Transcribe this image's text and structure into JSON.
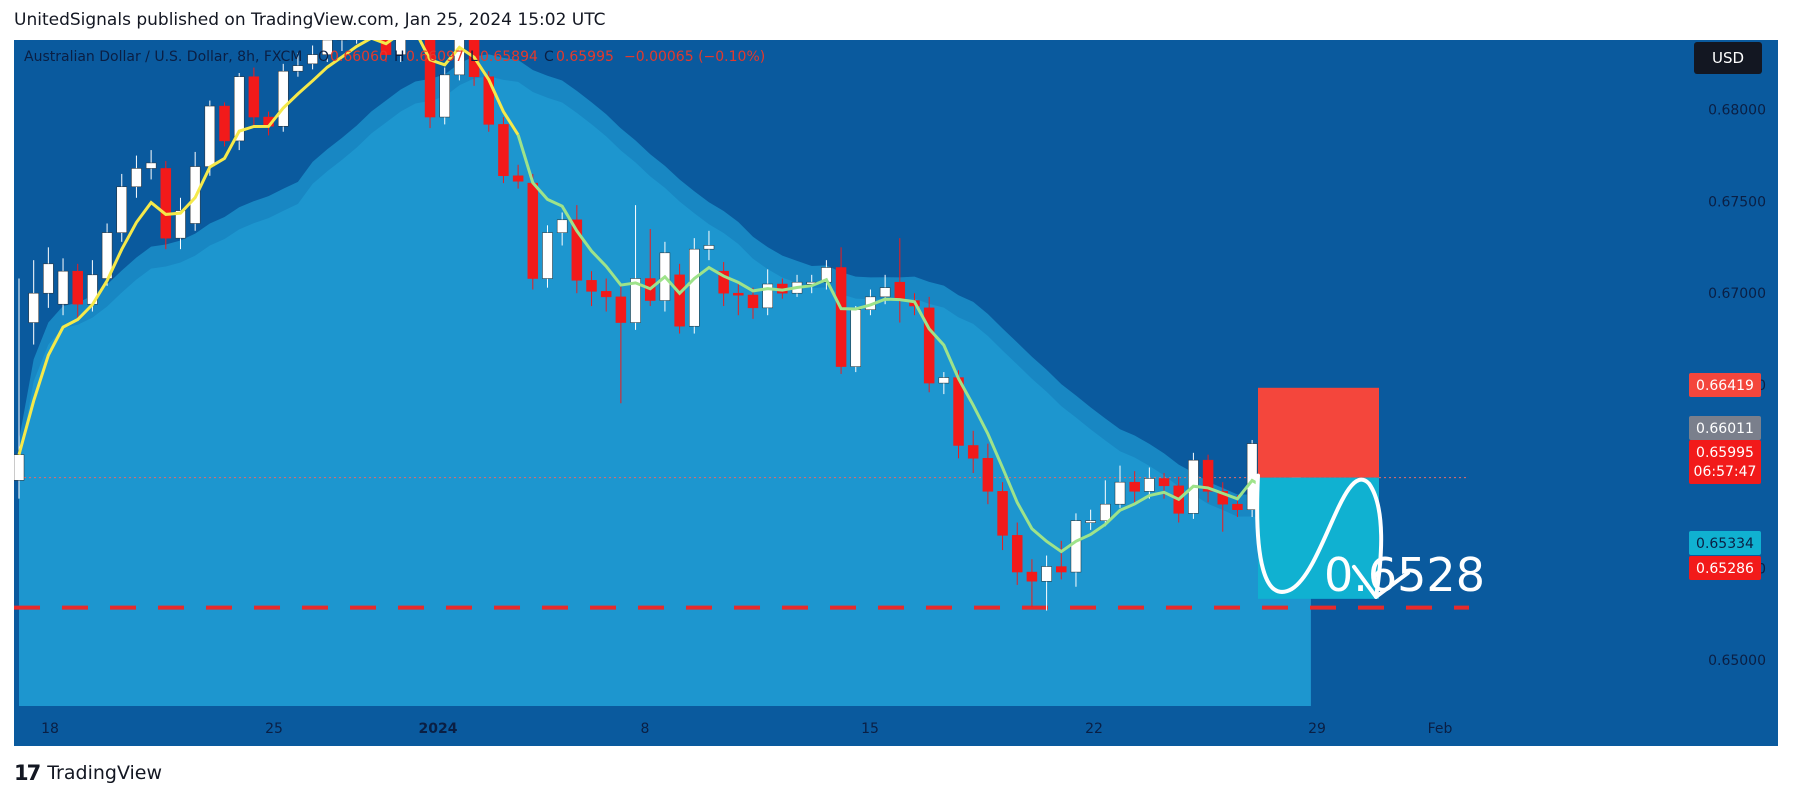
{
  "header": {
    "text": "UnitedSignals published on TradingView.com, Jan 25, 2024 15:02 UTC"
  },
  "legend": {
    "symbol": "Australian Dollar / U.S. Dollar, 8h, FXCM",
    "o_label": "O",
    "o_value": "0.66060",
    "h_label": "H",
    "h_value": "0.66097",
    "l_label": "L",
    "l_value": "0.65894",
    "c_label": "C",
    "c_value": "0.65995",
    "change": "−0.00065 (−0.10%)"
  },
  "currency_button": "USD",
  "price_labels": {
    "stop": "0.66419",
    "ask": "0.66011",
    "last": "0.65995",
    "countdown": "06:57:47",
    "target_line": "0.65334",
    "support": "0.65286"
  },
  "annotation_text": "0.6528",
  "footer": {
    "brand": "TradingView",
    "logo_text": "17"
  },
  "colors": {
    "background": "#0a5a9e",
    "up_candle": "#ffffff",
    "down_candle": "#f21a1a",
    "fast_ma": "#f5e94a",
    "slow_ma": "#9ee38a",
    "band_fill": "#1b8fc9",
    "stop_box": "#f4463c",
    "target_box": "#10b1d1",
    "support_line": "#e82a2a"
  },
  "chart_data": {
    "type": "candlestick",
    "timeframe": "8h",
    "y_axis": {
      "ticks": [
        "0.68000",
        "0.67500",
        "0.67000",
        "0.66500",
        "0.65500",
        "0.65000"
      ],
      "range": [
        0.6475,
        0.6838
      ]
    },
    "x_axis": {
      "ticks": [
        "18",
        "25",
        "2024",
        "8",
        "15",
        "22",
        "29",
        "Feb"
      ]
    },
    "candles": [
      {
        "o": 0.6598,
        "h": 0.6708,
        "l": 0.6588,
        "c": 0.6612
      },
      {
        "o": 0.6684,
        "h": 0.6718,
        "l": 0.6672,
        "c": 0.67
      },
      {
        "o": 0.67,
        "h": 0.6725,
        "l": 0.6692,
        "c": 0.6716
      },
      {
        "o": 0.6694,
        "h": 0.6719,
        "l": 0.6688,
        "c": 0.6712
      },
      {
        "o": 0.6712,
        "h": 0.6716,
        "l": 0.6685,
        "c": 0.6694
      },
      {
        "o": 0.6694,
        "h": 0.6718,
        "l": 0.669,
        "c": 0.671
      },
      {
        "o": 0.6708,
        "h": 0.6738,
        "l": 0.6704,
        "c": 0.6733
      },
      {
        "o": 0.6733,
        "h": 0.6765,
        "l": 0.6728,
        "c": 0.6758
      },
      {
        "o": 0.6758,
        "h": 0.6775,
        "l": 0.6752,
        "c": 0.6768
      },
      {
        "o": 0.6768,
        "h": 0.6778,
        "l": 0.6762,
        "c": 0.6771
      },
      {
        "o": 0.6768,
        "h": 0.6772,
        "l": 0.6724,
        "c": 0.673
      },
      {
        "o": 0.673,
        "h": 0.6752,
        "l": 0.6724,
        "c": 0.6745
      },
      {
        "o": 0.6738,
        "h": 0.6777,
        "l": 0.6734,
        "c": 0.6769
      },
      {
        "o": 0.6769,
        "h": 0.6805,
        "l": 0.6764,
        "c": 0.6802
      },
      {
        "o": 0.6802,
        "h": 0.6804,
        "l": 0.678,
        "c": 0.6783
      },
      {
        "o": 0.6783,
        "h": 0.682,
        "l": 0.6778,
        "c": 0.6818
      },
      {
        "o": 0.6818,
        "h": 0.6823,
        "l": 0.6791,
        "c": 0.6796
      },
      {
        "o": 0.6796,
        "h": 0.6799,
        "l": 0.6786,
        "c": 0.6791
      },
      {
        "o": 0.6791,
        "h": 0.6825,
        "l": 0.6788,
        "c": 0.6821
      },
      {
        "o": 0.6821,
        "h": 0.6831,
        "l": 0.6818,
        "c": 0.6824
      },
      {
        "o": 0.6825,
        "h": 0.6835,
        "l": 0.6822,
        "c": 0.683
      },
      {
        "o": 0.683,
        "h": 0.6842,
        "l": 0.6826,
        "c": 0.6838
      },
      {
        "o": 0.6838,
        "h": 0.6846,
        "l": 0.6832,
        "c": 0.684
      },
      {
        "o": 0.684,
        "h": 0.685,
        "l": 0.6836,
        "c": 0.6846
      },
      {
        "o": 0.6846,
        "h": 0.6853,
        "l": 0.6842,
        "c": 0.6848
      },
      {
        "o": 0.6848,
        "h": 0.6852,
        "l": 0.6826,
        "c": 0.683
      },
      {
        "o": 0.683,
        "h": 0.6856,
        "l": 0.6826,
        "c": 0.6853
      },
      {
        "o": 0.6853,
        "h": 0.6858,
        "l": 0.6842,
        "c": 0.6845
      },
      {
        "o": 0.685,
        "h": 0.6855,
        "l": 0.679,
        "c": 0.6796
      },
      {
        "o": 0.6796,
        "h": 0.6823,
        "l": 0.6792,
        "c": 0.6819
      },
      {
        "o": 0.6819,
        "h": 0.6858,
        "l": 0.6816,
        "c": 0.6853
      },
      {
        "o": 0.6853,
        "h": 0.6858,
        "l": 0.6813,
        "c": 0.6818
      },
      {
        "o": 0.6818,
        "h": 0.6821,
        "l": 0.6788,
        "c": 0.6792
      },
      {
        "o": 0.6792,
        "h": 0.6796,
        "l": 0.676,
        "c": 0.6764
      },
      {
        "o": 0.6764,
        "h": 0.677,
        "l": 0.6757,
        "c": 0.6761
      },
      {
        "o": 0.676,
        "h": 0.6765,
        "l": 0.6702,
        "c": 0.6708
      },
      {
        "o": 0.6708,
        "h": 0.6737,
        "l": 0.6703,
        "c": 0.6733
      },
      {
        "o": 0.6733,
        "h": 0.6744,
        "l": 0.6726,
        "c": 0.674
      },
      {
        "o": 0.674,
        "h": 0.6748,
        "l": 0.67,
        "c": 0.6707
      },
      {
        "o": 0.6707,
        "h": 0.6712,
        "l": 0.6693,
        "c": 0.6701
      },
      {
        "o": 0.6701,
        "h": 0.6708,
        "l": 0.669,
        "c": 0.6698
      },
      {
        "o": 0.6698,
        "h": 0.6704,
        "l": 0.664,
        "c": 0.6684
      },
      {
        "o": 0.6684,
        "h": 0.6748,
        "l": 0.668,
        "c": 0.6708
      },
      {
        "o": 0.6708,
        "h": 0.6735,
        "l": 0.6693,
        "c": 0.6696
      },
      {
        "o": 0.6696,
        "h": 0.6728,
        "l": 0.669,
        "c": 0.6722
      },
      {
        "o": 0.671,
        "h": 0.6716,
        "l": 0.6678,
        "c": 0.6682
      },
      {
        "o": 0.6682,
        "h": 0.673,
        "l": 0.6678,
        "c": 0.6724
      },
      {
        "o": 0.6724,
        "h": 0.6734,
        "l": 0.6718,
        "c": 0.6726
      },
      {
        "o": 0.6712,
        "h": 0.6717,
        "l": 0.6693,
        "c": 0.67
      },
      {
        "o": 0.67,
        "h": 0.6705,
        "l": 0.6688,
        "c": 0.6699
      },
      {
        "o": 0.6699,
        "h": 0.6703,
        "l": 0.6686,
        "c": 0.6692
      },
      {
        "o": 0.6692,
        "h": 0.6713,
        "l": 0.6688,
        "c": 0.6705
      },
      {
        "o": 0.6705,
        "h": 0.6708,
        "l": 0.6697,
        "c": 0.67
      },
      {
        "o": 0.67,
        "h": 0.671,
        "l": 0.6698,
        "c": 0.6706
      },
      {
        "o": 0.6706,
        "h": 0.671,
        "l": 0.67,
        "c": 0.6706
      },
      {
        "o": 0.6706,
        "h": 0.6718,
        "l": 0.6702,
        "c": 0.6714
      },
      {
        "o": 0.6714,
        "h": 0.6725,
        "l": 0.6656,
        "c": 0.666
      },
      {
        "o": 0.666,
        "h": 0.6693,
        "l": 0.6657,
        "c": 0.6691
      },
      {
        "o": 0.6691,
        "h": 0.6702,
        "l": 0.6688,
        "c": 0.6698
      },
      {
        "o": 0.6698,
        "h": 0.671,
        "l": 0.6694,
        "c": 0.6703
      },
      {
        "o": 0.6706,
        "h": 0.673,
        "l": 0.6684,
        "c": 0.6696
      },
      {
        "o": 0.6696,
        "h": 0.67,
        "l": 0.6688,
        "c": 0.6693
      },
      {
        "o": 0.6692,
        "h": 0.6698,
        "l": 0.6646,
        "c": 0.6651
      },
      {
        "o": 0.6651,
        "h": 0.6657,
        "l": 0.6645,
        "c": 0.6654
      },
      {
        "o": 0.6654,
        "h": 0.6658,
        "l": 0.661,
        "c": 0.6617
      },
      {
        "o": 0.6617,
        "h": 0.6625,
        "l": 0.6602,
        "c": 0.661
      },
      {
        "o": 0.661,
        "h": 0.6618,
        "l": 0.6585,
        "c": 0.6592
      },
      {
        "o": 0.6592,
        "h": 0.6597,
        "l": 0.656,
        "c": 0.6568
      },
      {
        "o": 0.6568,
        "h": 0.6575,
        "l": 0.6541,
        "c": 0.6548
      },
      {
        "o": 0.6548,
        "h": 0.6555,
        "l": 0.6529,
        "c": 0.6543
      },
      {
        "o": 0.6543,
        "h": 0.6557,
        "l": 0.6527,
        "c": 0.6551
      },
      {
        "o": 0.6551,
        "h": 0.6565,
        "l": 0.6544,
        "c": 0.6548
      },
      {
        "o": 0.6548,
        "h": 0.658,
        "l": 0.654,
        "c": 0.6576
      },
      {
        "o": 0.6576,
        "h": 0.6582,
        "l": 0.6571,
        "c": 0.6576
      },
      {
        "o": 0.6576,
        "h": 0.6598,
        "l": 0.6573,
        "c": 0.6585
      },
      {
        "o": 0.6585,
        "h": 0.6606,
        "l": 0.6583,
        "c": 0.6597
      },
      {
        "o": 0.6597,
        "h": 0.6603,
        "l": 0.6585,
        "c": 0.6592
      },
      {
        "o": 0.6592,
        "h": 0.6605,
        "l": 0.6588,
        "c": 0.6599
      },
      {
        "o": 0.6599,
        "h": 0.6602,
        "l": 0.6588,
        "c": 0.6595
      },
      {
        "o": 0.6595,
        "h": 0.66,
        "l": 0.6575,
        "c": 0.658
      },
      {
        "o": 0.658,
        "h": 0.6613,
        "l": 0.6577,
        "c": 0.6609
      },
      {
        "o": 0.6609,
        "h": 0.6612,
        "l": 0.6586,
        "c": 0.6592
      },
      {
        "o": 0.6592,
        "h": 0.6597,
        "l": 0.657,
        "c": 0.6585
      },
      {
        "o": 0.6585,
        "h": 0.659,
        "l": 0.6578,
        "c": 0.6582
      },
      {
        "o": 0.6582,
        "h": 0.662,
        "l": 0.6578,
        "c": 0.6618
      },
      {
        "o": 0.6618,
        "h": 0.6621,
        "l": 0.658,
        "c": 0.6584
      },
      {
        "o": 0.6584,
        "h": 0.659,
        "l": 0.6578,
        "c": 0.6582
      },
      {
        "o": 0.6582,
        "h": 0.6605,
        "l": 0.6578,
        "c": 0.6601
      },
      {
        "o": 0.6606,
        "h": 0.661,
        "l": 0.6589,
        "c": 0.66
      }
    ]
  }
}
